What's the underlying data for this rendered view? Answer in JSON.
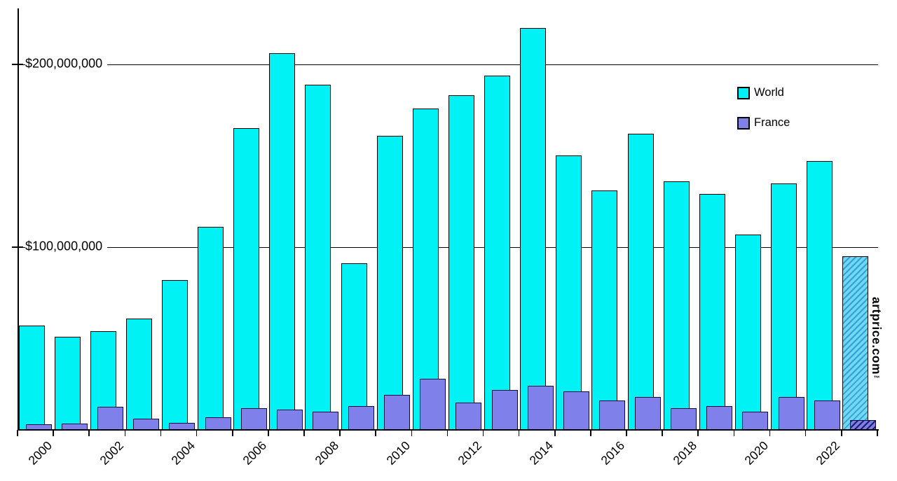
{
  "chart_data": {
    "type": "bar",
    "title": "",
    "categories": [
      2000,
      2001,
      2002,
      2003,
      2004,
      2005,
      2006,
      2007,
      2008,
      2009,
      2010,
      2011,
      2012,
      2013,
      2014,
      2015,
      2016,
      2017,
      2018,
      2019,
      2020,
      2021,
      2022,
      2023
    ],
    "series": [
      {
        "name": "World",
        "values_musd": [
          57,
          51,
          54,
          61,
          82,
          111,
          165,
          206,
          189,
          91,
          161,
          176,
          183,
          194,
          220,
          150,
          131,
          162,
          136,
          129,
          107,
          135,
          147,
          95
        ]
      },
      {
        "name": "France",
        "values_musd": [
          3,
          3.5,
          12.5,
          6,
          4,
          7,
          12,
          11,
          10,
          13,
          19,
          28,
          15,
          22,
          24,
          21,
          16,
          18,
          12,
          13,
          10,
          18,
          16,
          5.5
        ]
      }
    ],
    "last_bar_hatched": true,
    "unit": "USD millions (values read from axis scale)",
    "ytick_labels": [
      "$100,000,000",
      "$200,000,000"
    ],
    "ytick_values_musd": [
      100,
      200
    ],
    "ylim_musd": [
      0,
      231
    ],
    "xtick_labels": [
      "2000",
      "2002",
      "2004",
      "2006",
      "2008",
      "2010",
      "2012",
      "2014",
      "2016",
      "2018",
      "2020",
      "2022"
    ],
    "legend_position": "upper right",
    "grid": "horizontal only",
    "colors": {
      "world": "#00f2f5",
      "world_border": "#000000",
      "france": "#8080ea",
      "france_border": "#0a0a3c",
      "world_hatch_bg": "#6fd8f2",
      "world_hatch_line": "#379fd6",
      "france_hatch_bg": "#7e7ee4",
      "france_hatch_line": "#1c1c70",
      "axis": "#000000"
    },
    "watermark": "artprice.com",
    "watermark_mark": "™"
  }
}
